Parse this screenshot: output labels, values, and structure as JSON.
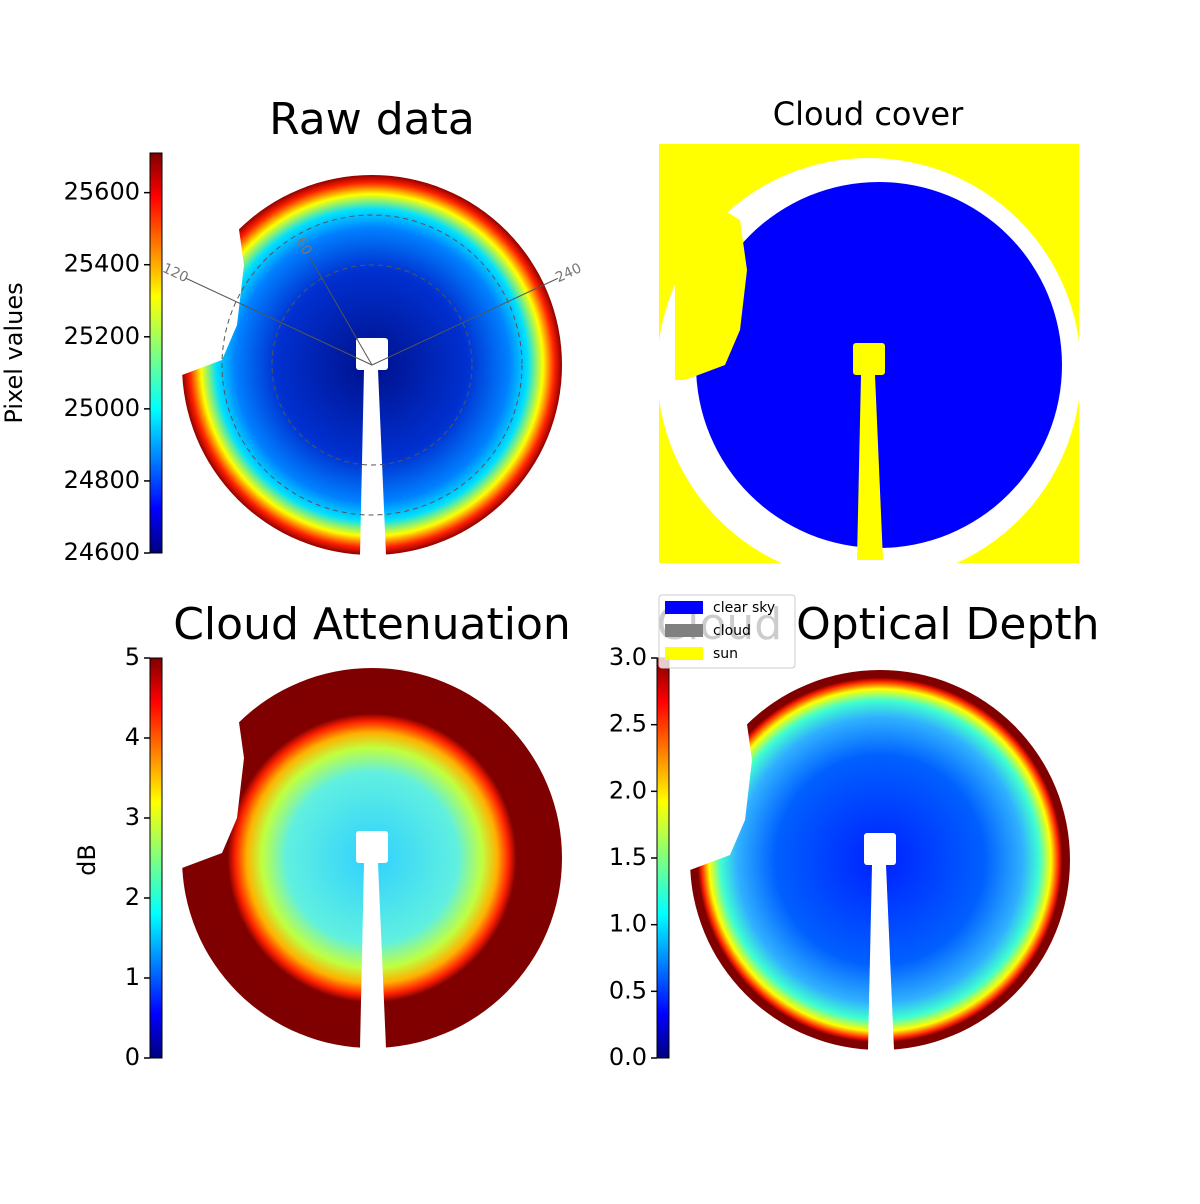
{
  "chart_data": [
    {
      "type": "heatmap",
      "title": "Raw data",
      "ylabel": "Pixel values",
      "ylim": [
        24600,
        25710
      ],
      "yticks": [
        24600,
        24800,
        25000,
        25200,
        25400,
        25600
      ],
      "polar_labels": [
        "120",
        "60",
        "240"
      ]
    },
    {
      "type": "categorical",
      "title": "Cloud cover",
      "categories": [
        "clear sky",
        "cloud",
        "sun"
      ],
      "colors": [
        "#0000ff",
        "#808080",
        "#ffff00"
      ]
    },
    {
      "type": "heatmap",
      "title": "Cloud Attenuation",
      "ylabel": "dB",
      "ylim": [
        0,
        5
      ],
      "yticks": [
        0,
        1,
        2,
        3,
        4,
        5
      ]
    },
    {
      "type": "heatmap",
      "title": "Cloud Optical Depth",
      "ylim": [
        0,
        3
      ],
      "yticks": [
        {
          "value": 0,
          "label": "0.0"
        },
        {
          "value": 0.5,
          "label": "0.5"
        },
        {
          "value": 1,
          "label": "1.0"
        },
        {
          "value": 1.5,
          "label": "1.5"
        },
        {
          "value": 2,
          "label": "2.0"
        },
        {
          "value": 2.5,
          "label": "2.5"
        },
        {
          "value": 3,
          "label": "3.0"
        }
      ]
    }
  ]
}
